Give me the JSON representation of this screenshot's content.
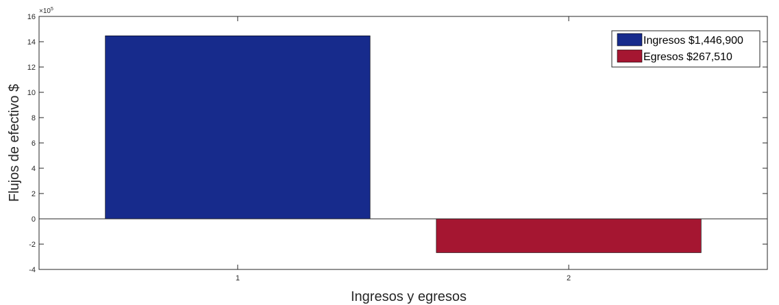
{
  "chart_data": {
    "type": "bar",
    "categories": [
      "1",
      "2"
    ],
    "series": [
      {
        "name": "Ingresos $1,446,900",
        "category": "1",
        "value": 1446900,
        "color": "#172B8C"
      },
      {
        "name": "Egresos $267,510",
        "category": "2",
        "value": -267510,
        "color": "#A51631"
      }
    ],
    "xlabel": "Ingresos y egresos",
    "ylabel": "Flujos de efectivo $",
    "ylim": [
      -400000,
      1600000
    ],
    "yticks": [
      -4,
      -2,
      0,
      2,
      4,
      6,
      8,
      10,
      12,
      14,
      16
    ],
    "ytick_exponent": {
      "base": "×10",
      "power": "5"
    },
    "xlim": [
      0.4,
      2.6
    ],
    "grid": false,
    "legend_position": "top-right"
  }
}
